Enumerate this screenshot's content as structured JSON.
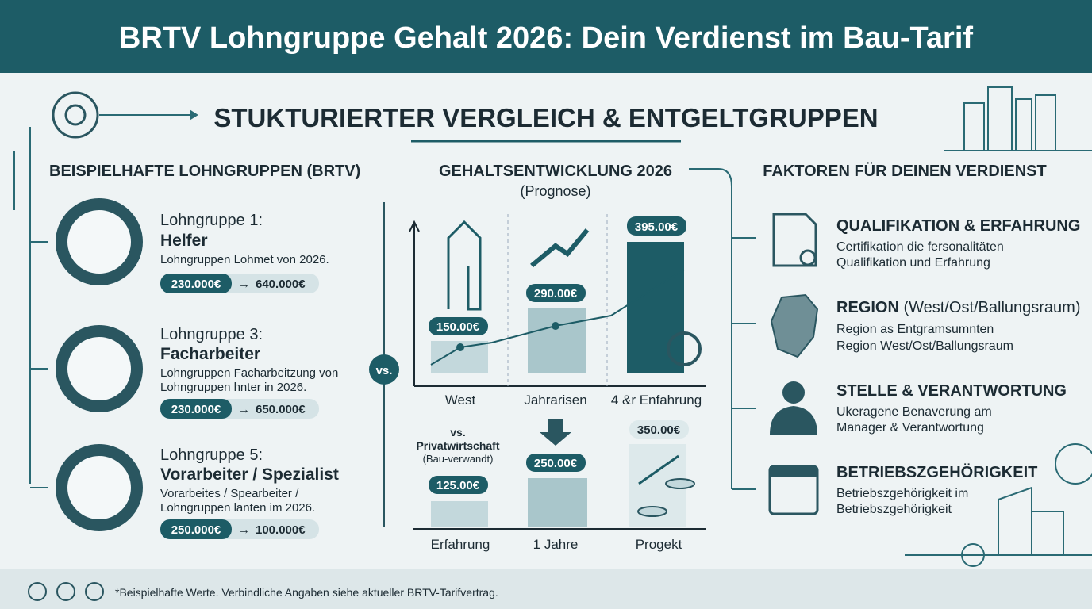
{
  "header": {
    "title": "BRTV Lohngruppe Gehalt 2026: Dein Verdienst im Bau-Tarif"
  },
  "subtitle": "STUKTURIERTER VERGLEICH & ENTGELTGRUPPEN",
  "left": {
    "heading": "BEISPIELHAFTE LOHNGRUPPEN (BRTV)",
    "groups": [
      {
        "label": "Lohngruppe 1:",
        "name": "Helfer",
        "desc": [
          "Lohngruppen Lohmet von 2026."
        ],
        "from": "230.000€",
        "to": "640.000€"
      },
      {
        "label": "Lohngruppe 3:",
        "name": "Facharbeiter",
        "desc": [
          "Lohngruppen Facharbeitzung von",
          "Lohngruppen hnter in 2026."
        ],
        "from": "230.000€",
        "to": "650.000€"
      },
      {
        "label": "Lohngruppe 5:",
        "name": "Vorarbeiter / Spezialist",
        "desc": [
          "Vorarbeites / Spearbeiter /",
          "Lohngruppen lanten im 2026."
        ],
        "from": "250.000€",
        "to": "100.000€"
      }
    ]
  },
  "middle": {
    "heading": "GEHALTSENTWICKLUNG 2026",
    "subheading": "(Prognose)",
    "vs": "vs.",
    "top": {
      "categories": [
        "West",
        "Jahrarisen",
        "4 &r Enfahrung"
      ],
      "values": [
        "150.00€",
        "290.00€",
        "395.00€"
      ]
    },
    "bottom": {
      "compare": [
        "vs.",
        "Privatwirtschaft",
        "(Bau-verwandt)"
      ],
      "categories": [
        "Erfahrung",
        "1 Jahre",
        "Progekt"
      ],
      "values": [
        "125.00€",
        "250.00€",
        "350.00€"
      ]
    }
  },
  "right": {
    "heading": "FAKTOREN FÜR DEINEN VERDIENST",
    "factors": [
      {
        "title": "QUALIFIKATION & ERFAHRUNG",
        "lines": [
          "Certifikation die fersonalitäten",
          "Qualifikation und Erfahrung"
        ]
      },
      {
        "title": "REGION",
        "title_extra": "(West/Ost/Ballungsraum)",
        "lines": [
          "Region as Entgramsumnten",
          "Region West/Ost/Ballungsraum"
        ]
      },
      {
        "title": "STELLE & VERANTWORTUNG",
        "lines": [
          "Ukeragene Benaverung am",
          "Manager & Verantwortung"
        ]
      },
      {
        "title": "BETRIEBSZGEHÖRIGKEIT",
        "lines": [
          "Betriebszgehörigkeit im",
          "Betriebszgehörigkeit"
        ]
      }
    ]
  },
  "footer": {
    "note": "*Beispielhafte Werte. Verbindliche Angaben siehe aktueller BRTV-Tarifvertrag."
  }
}
